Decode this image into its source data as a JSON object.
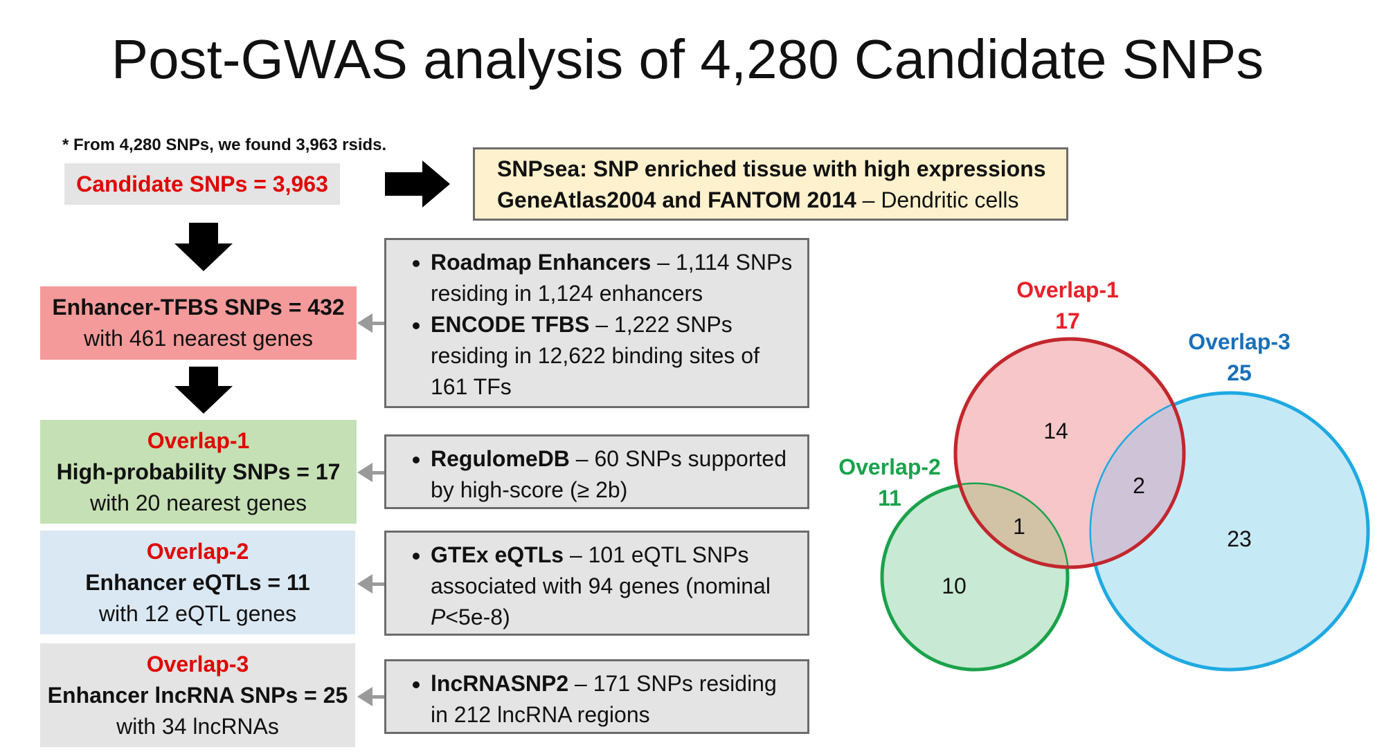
{
  "title": "Post-GWAS analysis of 4,280 Candidate SNPs",
  "note": "* From 4,280 SNPs, we found 3,963 rsids.",
  "candidate": {
    "label": "Candidate SNPs = 3,963"
  },
  "snpsea": {
    "line1": "SNPsea: SNP enriched tissue with high expressions",
    "line2_bold": "GeneAtlas2004 and FANTOM 2014",
    "line2_rest": " – Dendritic cells"
  },
  "enhancer_tfbs": {
    "line1": "Enhancer-TFBS SNPs = 432",
    "line2": "with 461 nearest genes"
  },
  "roadmap": {
    "bold": "Roadmap Enhancers",
    "rest": " – 1,114 SNPs residing in 1,124 enhancers"
  },
  "encode": {
    "bold": "ENCODE TFBS",
    "rest": " – 1,222 SNPs residing in 12,622 binding sites of 161 TFs"
  },
  "overlap1_box": {
    "tag": "Overlap-1",
    "line1": "High-probability SNPs = 17",
    "line2": "with 20 nearest genes"
  },
  "regulome": {
    "bold": "RegulomeDB",
    "rest": " – 60 SNPs supported by high-score (≥ 2b)"
  },
  "overlap2_box": {
    "tag": "Overlap-2",
    "line1": "Enhancer eQTLs = 11",
    "line2": "with 12 eQTL genes"
  },
  "gtex": {
    "bold": "GTEx eQTLs",
    "rest": " – 101 eQTL SNPs associated with 94 genes (nominal ",
    "p": "P",
    "rest2": "<5e-8)"
  },
  "overlap3_box": {
    "tag": "Overlap-3",
    "line1": "Enhancer lncRNA SNPs = 25",
    "line2": "with 34 lncRNAs"
  },
  "lncrna": {
    "bold": "lncRNASNP2",
    "rest": " – 171 SNPs residing in 212 lncRNA regions"
  },
  "venn": {
    "sets": [
      {
        "name": "Overlap-1",
        "total": "17",
        "color": "#e8202a",
        "fill": "#f6c6c8"
      },
      {
        "name": "Overlap-2",
        "total": "11",
        "color": "#1aa24b",
        "fill": "#c8e9d3"
      },
      {
        "name": "Overlap-3",
        "total": "25",
        "color": "#1a6fb8",
        "fill": "#c6e9f6",
        "stroke": "#1fa9e1"
      }
    ],
    "regions": {
      "only1": "14",
      "only2": "10",
      "only3": "23",
      "o1_o2": "1",
      "o1_o3": "2"
    }
  },
  "colors": {
    "candidate_bg": "#e4e4e4",
    "tfbs_bg": "#f49a9a",
    "ov1_bg": "#c5e0b4",
    "ov2_bg": "#dae8f3",
    "ov3_bg": "#e4e4e4",
    "snpsea_bg": "#fef1cd"
  }
}
